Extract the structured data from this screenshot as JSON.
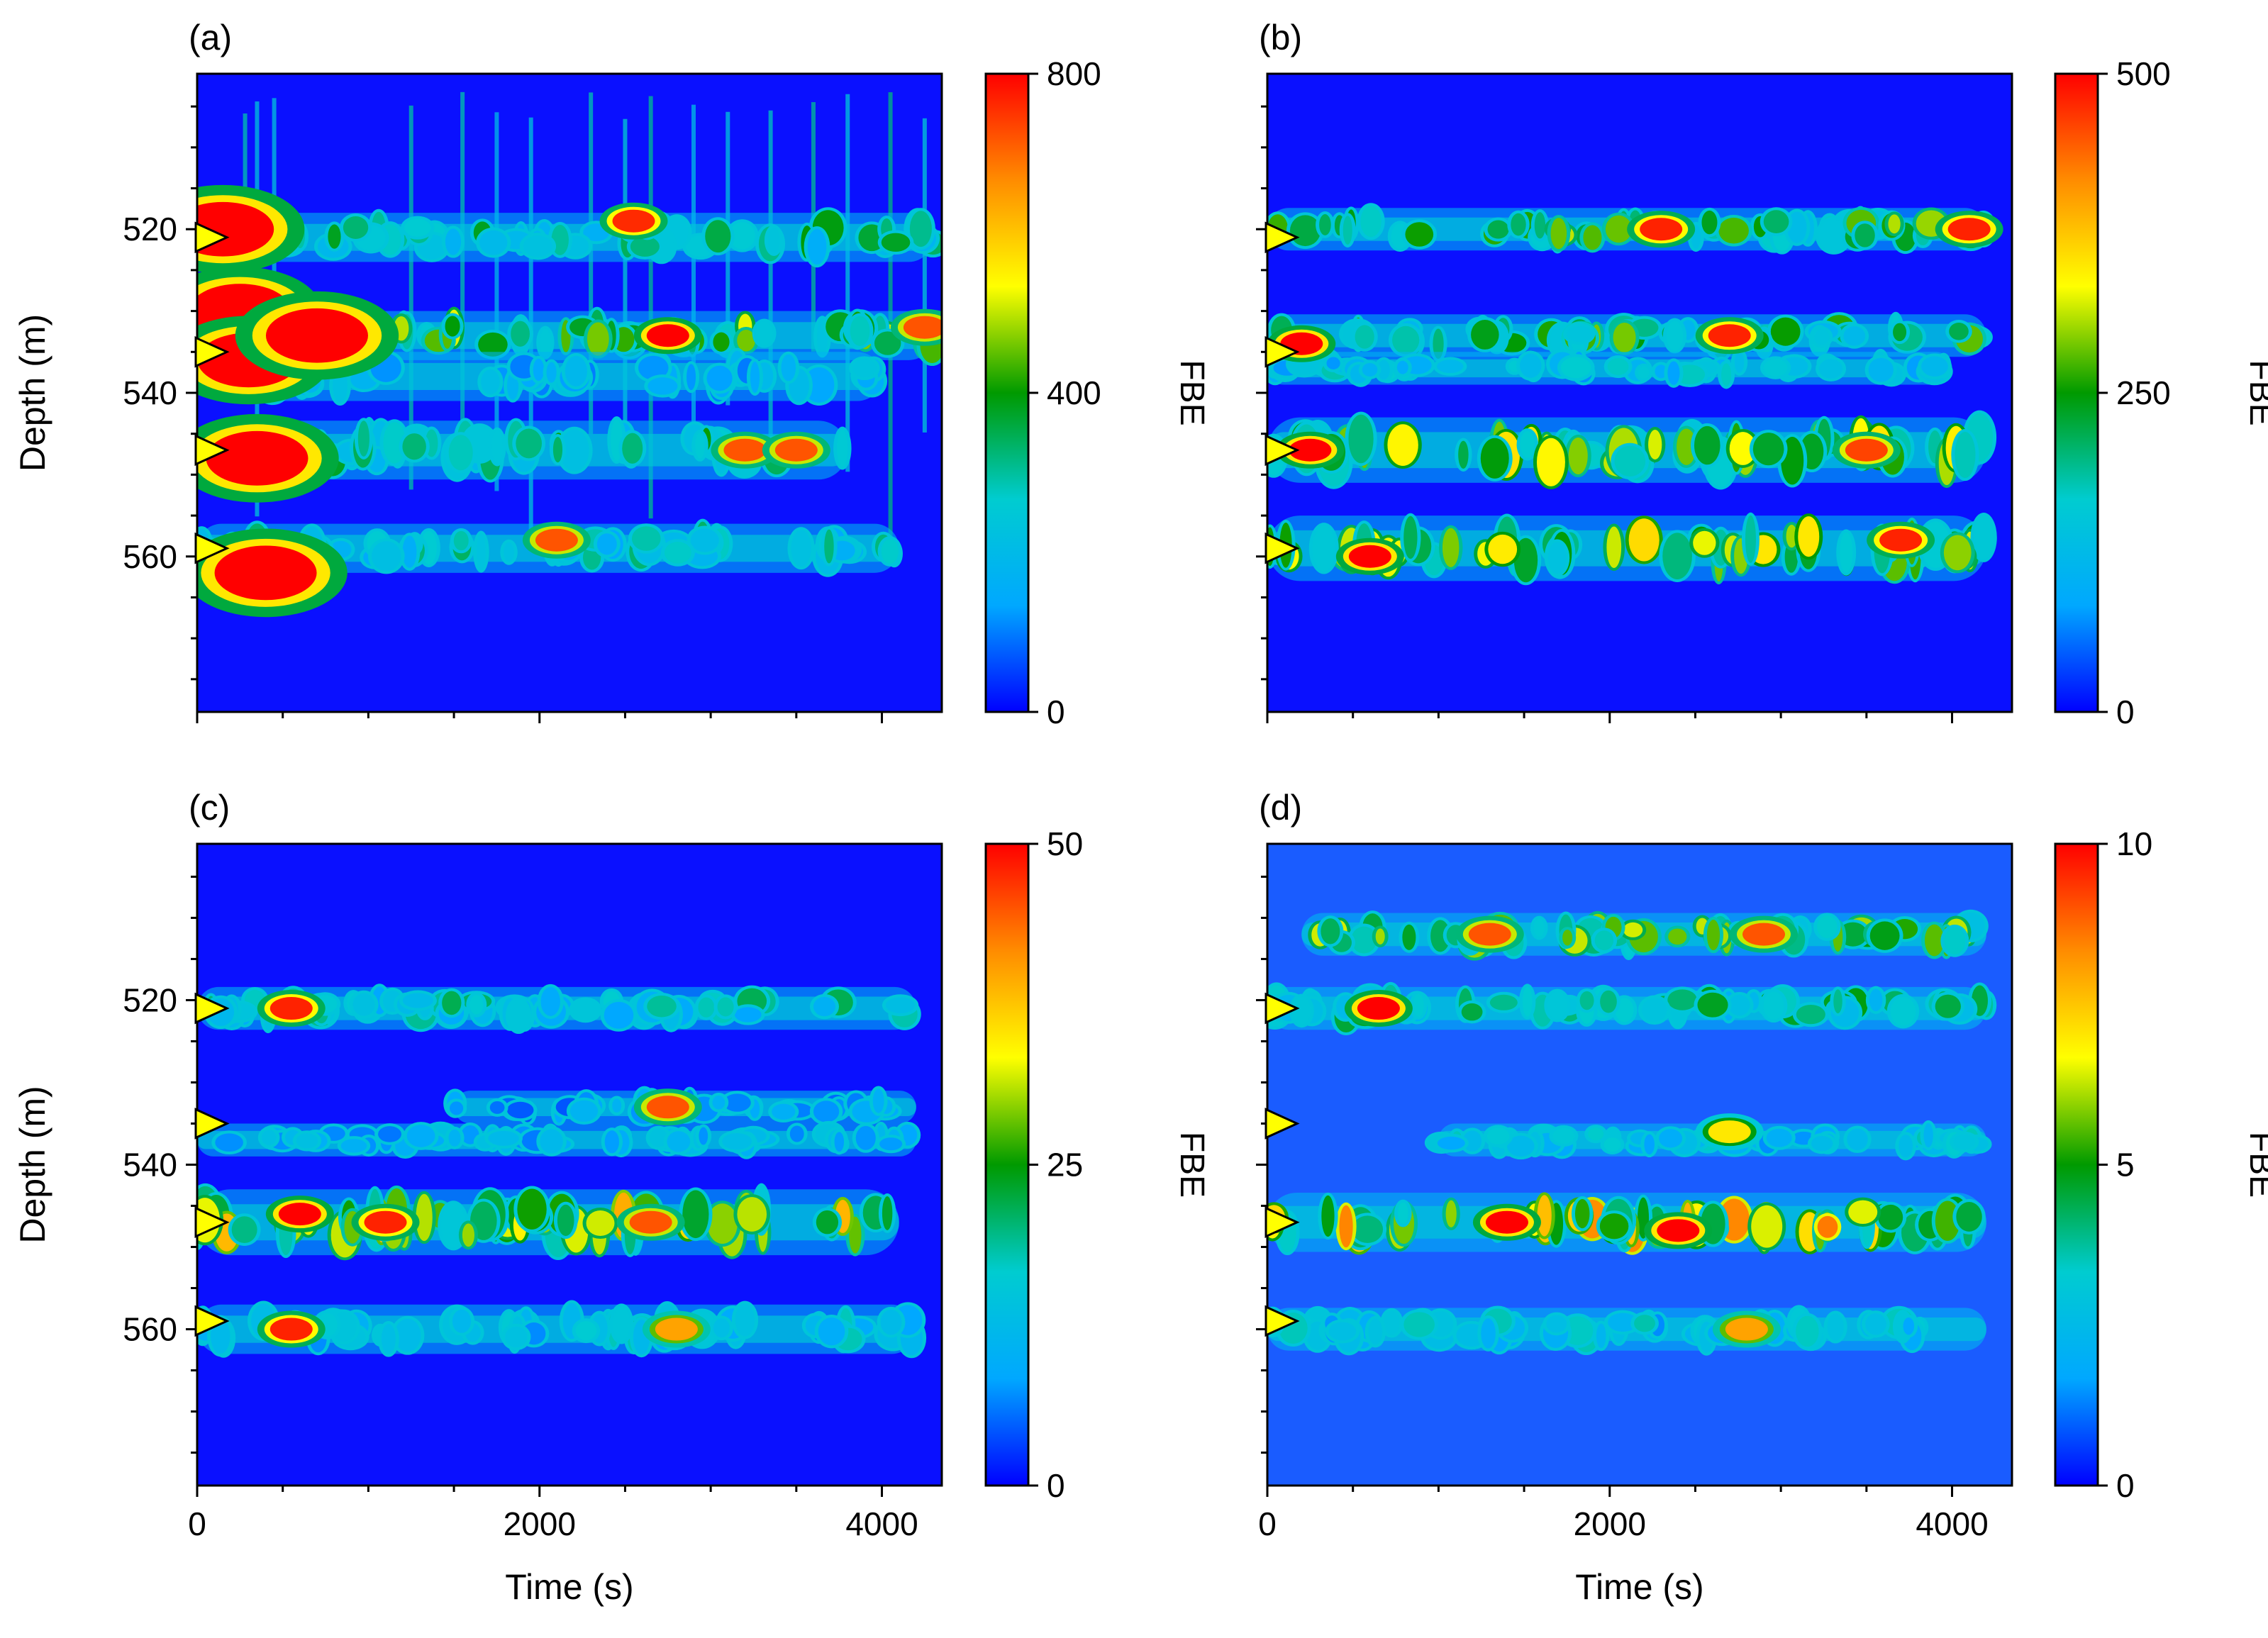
{
  "figure": {
    "panels": [
      {
        "label": "(a)",
        "colorbar_max": 800,
        "colorbar_ticks": [
          "0",
          "400",
          "800"
        ],
        "colorbar_label": "FBE",
        "show_xaxis": false,
        "show_ylabel": true
      },
      {
        "label": "(b)",
        "colorbar_max": 500,
        "colorbar_ticks": [
          "0",
          "250",
          "500"
        ],
        "colorbar_label": "FBE",
        "show_xaxis": false,
        "show_ylabel": false
      },
      {
        "label": "(c)",
        "colorbar_max": 50,
        "colorbar_ticks": [
          "0",
          "25",
          "50"
        ],
        "colorbar_label": "FBE",
        "show_xaxis": true,
        "show_ylabel": true
      },
      {
        "label": "(d)",
        "colorbar_max": 10,
        "colorbar_ticks": [
          "0",
          "5",
          "10"
        ],
        "colorbar_label": "FBE",
        "show_xaxis": true,
        "show_ylabel": false
      }
    ],
    "xlabel": "Time  (s)",
    "ylabel": "Depth (m)",
    "xticks": [
      "0",
      "2000",
      "4000"
    ],
    "yticks": [
      "520",
      "540",
      "560"
    ],
    "colormap": [
      "#0000ff",
      "#00a8ff",
      "#00ccd0",
      "#009a00",
      "#ffff00",
      "#ff8c00",
      "#ff0000"
    ],
    "marker_color": "#ffff00"
  },
  "chart_data": [
    {
      "type": "heatmap",
      "title": "(a)",
      "xlabel": "Time  (s)",
      "ylabel": "Depth (m)",
      "xlim": [
        0,
        4350
      ],
      "ylim": [
        501,
        579
      ],
      "colorbar": {
        "label": "FBE",
        "range": [
          0,
          800
        ]
      },
      "markers_depth": [
        521,
        535,
        547,
        559
      ],
      "bands": [
        {
          "depth": 521,
          "width": 1.5,
          "level": 0.35,
          "t_start": 0,
          "t_end": 4300
        },
        {
          "depth": 533,
          "width": 1.5,
          "level": 0.45,
          "t_start": 0,
          "t_end": 4300
        },
        {
          "depth": 538,
          "width": 1.5,
          "level": 0.2,
          "t_start": 0,
          "t_end": 4000
        },
        {
          "depth": 547,
          "width": 1.8,
          "level": 0.35,
          "t_start": 0,
          "t_end": 3800
        },
        {
          "depth": 559,
          "width": 1.5,
          "level": 0.3,
          "t_start": 0,
          "t_end": 4100
        }
      ],
      "hotspots": [
        {
          "t": 150,
          "depth": 520,
          "value": 800
        },
        {
          "t": 250,
          "depth": 530,
          "value": 800
        },
        {
          "t": 300,
          "depth": 536,
          "value": 800
        },
        {
          "t": 700,
          "depth": 533,
          "value": 800
        },
        {
          "t": 350,
          "depth": 548,
          "value": 800
        },
        {
          "t": 400,
          "depth": 562,
          "value": 800
        },
        {
          "t": 2550,
          "depth": 519,
          "value": 760
        },
        {
          "t": 2750,
          "depth": 533,
          "value": 800
        },
        {
          "t": 3200,
          "depth": 547,
          "value": 720
        },
        {
          "t": 3500,
          "depth": 547,
          "value": 720
        },
        {
          "t": 2100,
          "depth": 558,
          "value": 720
        },
        {
          "t": 4250,
          "depth": 532,
          "value": 720
        }
      ],
      "streaks_s": [
        280,
        350,
        450,
        1250,
        1550,
        1750,
        1950,
        2300,
        2500,
        2650,
        2900,
        3100,
        3350,
        3600,
        3800,
        4050,
        4250
      ]
    },
    {
      "type": "heatmap",
      "title": "(b)",
      "xlabel": "Time  (s)",
      "ylabel": "Depth (m)",
      "xlim": [
        0,
        4350
      ],
      "ylim": [
        501,
        579
      ],
      "colorbar": {
        "label": "FBE",
        "range": [
          0,
          500
        ]
      },
      "markers_depth": [
        521,
        535,
        547,
        559
      ],
      "bands": [
        {
          "depth": 520,
          "width": 1.3,
          "level": 0.45,
          "t_start": 0,
          "t_end": 4200
        },
        {
          "depth": 533,
          "width": 1.3,
          "level": 0.4,
          "t_start": 0,
          "t_end": 4200
        },
        {
          "depth": 537,
          "width": 1.0,
          "level": 0.25,
          "t_start": 0,
          "t_end": 4000
        },
        {
          "depth": 547,
          "width": 2.0,
          "level": 0.5,
          "t_start": 0,
          "t_end": 4200
        },
        {
          "depth": 559,
          "width": 2.0,
          "level": 0.5,
          "t_start": 0,
          "t_end": 4200
        }
      ],
      "hotspots": [
        {
          "t": 600,
          "depth": 560,
          "value": 500
        },
        {
          "t": 250,
          "depth": 547,
          "value": 500
        },
        {
          "t": 2300,
          "depth": 520,
          "value": 480
        },
        {
          "t": 2700,
          "depth": 533,
          "value": 480
        },
        {
          "t": 3500,
          "depth": 547,
          "value": 460
        },
        {
          "t": 3700,
          "depth": 558,
          "value": 480
        },
        {
          "t": 4100,
          "depth": 520,
          "value": 480
        },
        {
          "t": 200,
          "depth": 534,
          "value": 500
        }
      ],
      "streaks_s": []
    },
    {
      "type": "heatmap",
      "title": "(c)",
      "xlabel": "Time  (s)",
      "ylabel": "Depth (m)",
      "xlim": [
        0,
        4350
      ],
      "ylim": [
        501,
        579
      ],
      "colorbar": {
        "label": "FBE",
        "range": [
          0,
          50
        ]
      },
      "markers_depth": [
        521,
        535,
        547,
        559
      ],
      "bands": [
        {
          "depth": 521,
          "width": 1.3,
          "level": 0.3,
          "t_start": 0,
          "t_end": 4200
        },
        {
          "depth": 533,
          "width": 1.0,
          "level": 0.15,
          "t_start": 1500,
          "t_end": 4200
        },
        {
          "depth": 537,
          "width": 1.0,
          "level": 0.2,
          "t_start": 0,
          "t_end": 4200
        },
        {
          "depth": 547,
          "width": 2.0,
          "level": 0.55,
          "t_start": 0,
          "t_end": 4100
        },
        {
          "depth": 560,
          "width": 1.5,
          "level": 0.25,
          "t_start": 0,
          "t_end": 4200
        }
      ],
      "hotspots": [
        {
          "t": 550,
          "depth": 521,
          "value": 48
        },
        {
          "t": 600,
          "depth": 546,
          "value": 50
        },
        {
          "t": 1100,
          "depth": 547,
          "value": 48
        },
        {
          "t": 2650,
          "depth": 547,
          "value": 45
        },
        {
          "t": 550,
          "depth": 560,
          "value": 48
        },
        {
          "t": 2750,
          "depth": 533,
          "value": 45
        },
        {
          "t": 2800,
          "depth": 560,
          "value": 40
        }
      ],
      "streaks_s": []
    },
    {
      "type": "heatmap",
      "title": "(d)",
      "xlabel": "Time  (s)",
      "ylabel": "Depth (m)",
      "xlim": [
        0,
        4350
      ],
      "ylim": [
        501,
        579
      ],
      "colorbar": {
        "label": "FBE",
        "range": [
          0,
          10
        ]
      },
      "markers_depth": [
        521,
        535,
        547,
        559
      ],
      "bands": [
        {
          "depth": 512,
          "width": 1.3,
          "level": 0.45,
          "t_start": 200,
          "t_end": 4200
        },
        {
          "depth": 521,
          "width": 1.3,
          "level": 0.35,
          "t_start": 0,
          "t_end": 4200
        },
        {
          "depth": 537,
          "width": 1.0,
          "level": 0.25,
          "t_start": 1000,
          "t_end": 4200
        },
        {
          "depth": 547,
          "width": 1.8,
          "level": 0.6,
          "t_start": 0,
          "t_end": 4200
        },
        {
          "depth": 560,
          "width": 1.3,
          "level": 0.25,
          "t_start": 0,
          "t_end": 4200
        }
      ],
      "hotspots": [
        {
          "t": 650,
          "depth": 521,
          "value": 10
        },
        {
          "t": 1400,
          "depth": 547,
          "value": 10
        },
        {
          "t": 2400,
          "depth": 548,
          "value": 10
        },
        {
          "t": 1300,
          "depth": 512,
          "value": 9
        },
        {
          "t": 2900,
          "depth": 512,
          "value": 9
        },
        {
          "t": 2700,
          "depth": 536,
          "value": 7
        },
        {
          "t": 2800,
          "depth": 560,
          "value": 8
        }
      ],
      "streaks_s": []
    }
  ]
}
